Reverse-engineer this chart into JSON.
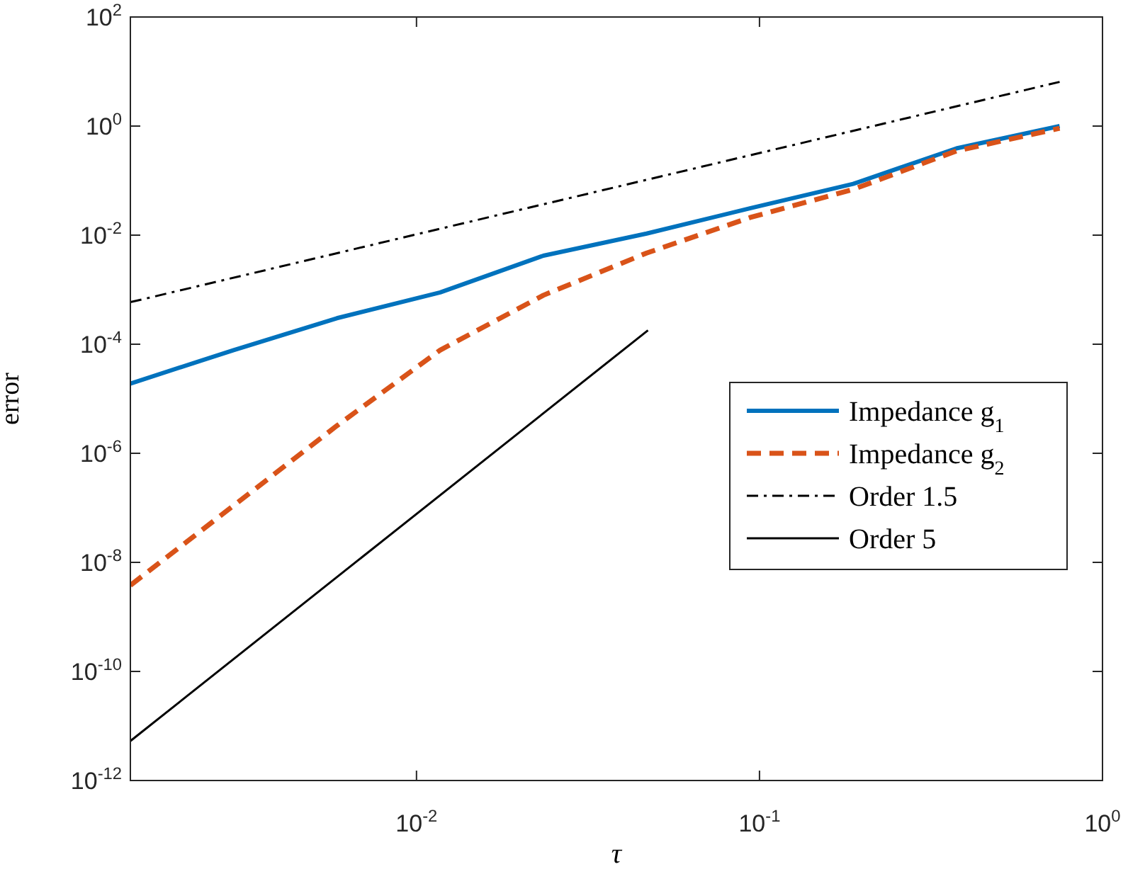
{
  "chart_data": {
    "type": "line",
    "xlabel": "τ",
    "ylabel": "error",
    "log": "xy",
    "grid": false,
    "legend": "right",
    "marker": "none",
    "xlim": [
      0.001465,
      1
    ],
    "ylim": [
      1e-12,
      100
    ],
    "xticks": [
      {
        "value": 0.01,
        "label": "10$^{-2}$"
      },
      {
        "value": 0.1,
        "label": "10$^{-1}$"
      },
      {
        "value": 1,
        "label": "10$^{0}$"
      }
    ],
    "yticks": [
      {
        "value": 1e-12,
        "label": "10$^{-12}$"
      },
      {
        "value": 1e-10,
        "label": "10$^{-10}$"
      },
      {
        "value": 1e-08,
        "label": "10$^{-8}$"
      },
      {
        "value": 1e-06,
        "label": "10$^{-6}$"
      },
      {
        "value": 0.0001,
        "label": "10$^{-4}$"
      },
      {
        "value": 0.01,
        "label": "10$^{-2}$"
      },
      {
        "value": 1,
        "label": "10$^{0}$"
      },
      {
        "value": 100,
        "label": "10$^{2}$"
      }
    ],
    "series": [
      {
        "name": "Impedance g$_{1}$",
        "color": "#0072bd",
        "line_style": "solid",
        "x": [
          0.001465,
          0.00293,
          0.00586,
          0.01172,
          0.02344,
          0.04688,
          0.09375,
          0.1875,
          0.375,
          0.75
        ],
        "values": [
          1.9e-05,
          7.8e-05,
          0.0003,
          0.00089,
          0.0042,
          0.0107,
          0.031,
          0.087,
          0.39,
          1.0
        ]
      },
      {
        "name": "Impedance g$_{2}$",
        "color": "#d95319",
        "line_style": "dashed",
        "x": [
          0.001465,
          0.00293,
          0.00586,
          0.01172,
          0.02344,
          0.04688,
          0.09375,
          0.1875,
          0.375,
          0.75
        ],
        "values": [
          3.8e-09,
          1.1e-07,
          3.2e-06,
          7.8e-05,
          0.00079,
          0.0047,
          0.021,
          0.069,
          0.35,
          0.91
        ]
      },
      {
        "name": "Order 1.5",
        "color": "#000000",
        "line_style": "dashdot",
        "x": [
          0.001465,
          0.75
        ],
        "values": [
          0.00059,
          6.46
        ]
      },
      {
        "name": "Order 5",
        "color": "#000000",
        "line_style": "solid",
        "x": [
          0.001465,
          0.0473
        ],
        "values": [
          5.3e-12,
          0.00018
        ]
      }
    ]
  }
}
